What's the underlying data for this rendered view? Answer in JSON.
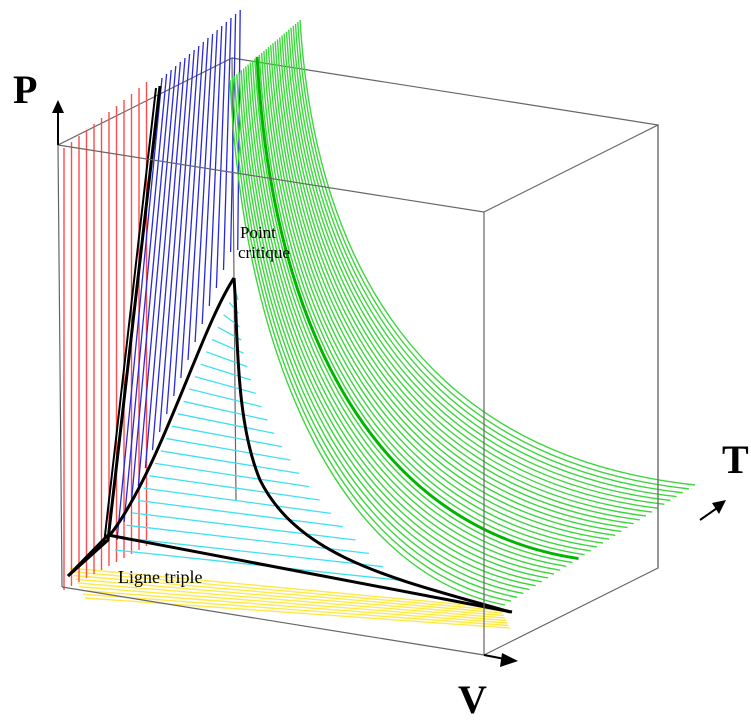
{
  "axes": {
    "p_label": "P",
    "t_label": "T",
    "v_label": "V"
  },
  "annotations": {
    "critical_point_line1": "Point",
    "critical_point_line2": "critique",
    "triple_line": "Ligne triple"
  },
  "colors": {
    "solid_region": "#ff4d4d",
    "solid_liquid_region": "#2a2ad8",
    "liquid_vapor_region": "#3fe0f0",
    "gas_region": "#3ed63e",
    "solid_vapor_region": "#ffe94a",
    "critical_isotherm": "#00b400",
    "boundary": "#000000",
    "box": "#666666"
  }
}
